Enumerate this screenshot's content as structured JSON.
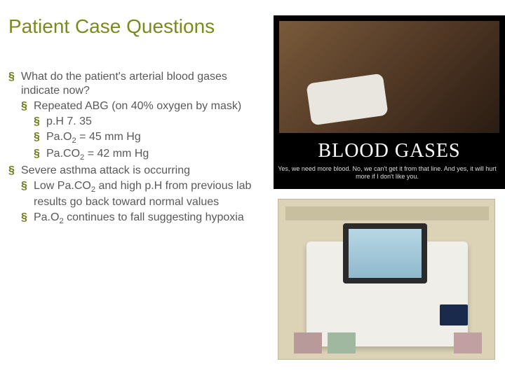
{
  "title": {
    "text": "Patient Case Questions",
    "color": "#7a8a1f",
    "fontsize": 28
  },
  "body": {
    "color": "#595959",
    "fontsize": 16,
    "lineheight": 1.25
  },
  "bullets": {
    "lvl1": [
      {
        "text": "What do the patient's arterial blood gases indicate now?",
        "children": [
          "a"
        ]
      },
      {
        "text": "Severe asthma attack is occurring",
        "children": [
          "b",
          "c"
        ]
      }
    ],
    "lvl2": {
      "a": {
        "text": "Repeated ABG (on 40% oxygen by mask)",
        "children": [
          "ph",
          "pao2",
          "paco2"
        ]
      },
      "b": {
        "text_html": "Low Pa.CO<sub>2</sub> and high p.H from previous lab results go back toward normal values"
      },
      "c": {
        "text_html": "Pa.O<sub>2</sub> continues to fall suggesting hypoxia"
      }
    },
    "lvl3": {
      "ph": {
        "text": "p.H 7. 35"
      },
      "pao2": {
        "text_html": "Pa.O<sub>2</sub> = 45 mm Hg"
      },
      "paco2": {
        "text_html": "Pa.CO<sub>2</sub> = 42 mm Hg"
      }
    }
  },
  "image_top": {
    "big_text": "BLOOD GASES",
    "caption": "Yes, we need more blood. No, we can't get it from that line. And yes, it will hurt more if I don't like you.",
    "bg": "#000000",
    "big_text_color": "#ffffff",
    "caption_color": "#dddddd"
  },
  "image_bottom": {
    "description": "blood gas analyzer machine",
    "bg": "#dcd3b7",
    "machine_color": "#efeee9",
    "screen_color": "#8fb9cc"
  }
}
